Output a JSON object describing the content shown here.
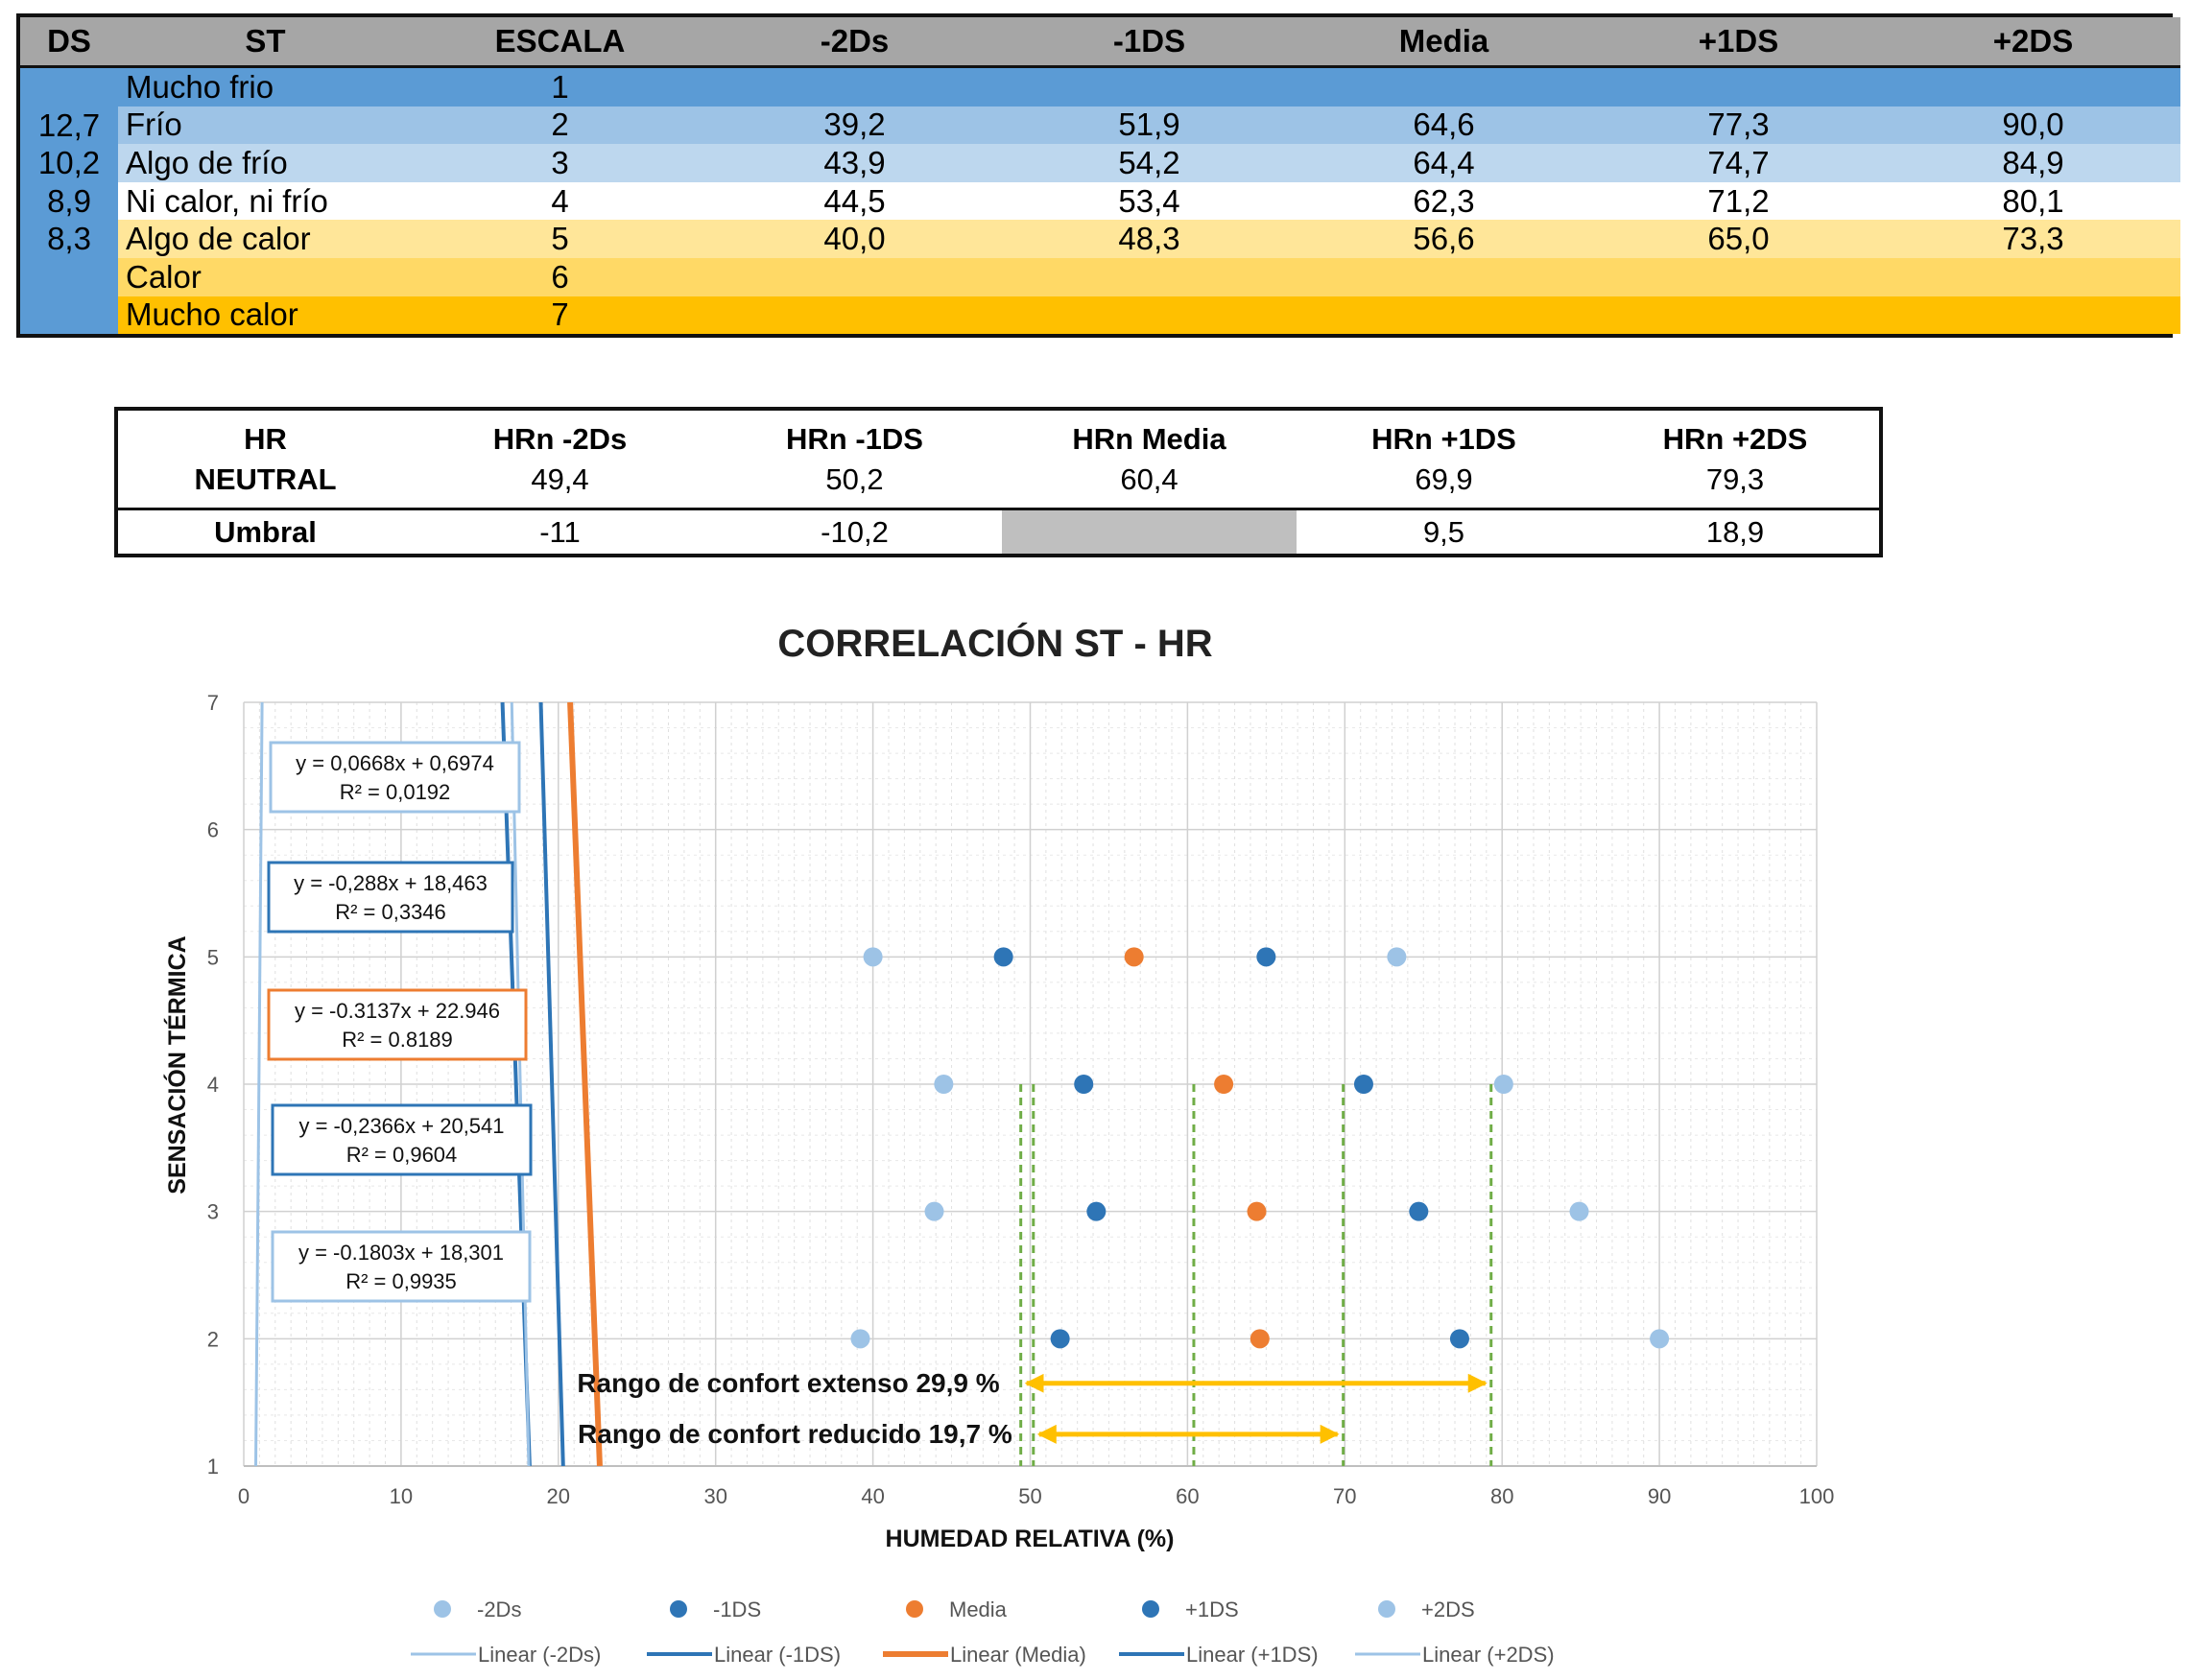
{
  "top_table": {
    "headers": [
      "DS",
      "ST",
      "ESCALA",
      "-2Ds",
      "-1DS",
      "Media",
      "+1DS",
      "+2DS"
    ],
    "ds_values": [
      "12,7",
      "10,2",
      "8,9",
      "8,3"
    ],
    "rows": [
      {
        "st": "Mucho frio",
        "escala": "1",
        "m2": "",
        "m1": "",
        "media": "",
        "p1": "",
        "p2": "",
        "color": "#5b9bd5"
      },
      {
        "st": "Frío",
        "escala": "2",
        "m2": "39,2",
        "m1": "51,9",
        "media": "64,6",
        "p1": "77,3",
        "p2": "90,0",
        "color": "#9dc3e6"
      },
      {
        "st": "Algo de frío",
        "escala": "3",
        "m2": "43,9",
        "m1": "54,2",
        "media": "64,4",
        "p1": "74,7",
        "p2": "84,9",
        "color": "#bdd7ee"
      },
      {
        "st": "Ni calor, ni frío",
        "escala": "4",
        "m2": "44,5",
        "m1": "53,4",
        "media": "62,3",
        "p1": "71,2",
        "p2": "80,1",
        "color": "#ffffff"
      },
      {
        "st": "Algo de calor",
        "escala": "5",
        "m2": "40,0",
        "m1": "48,3",
        "media": "56,6",
        "p1": "65,0",
        "p2": "73,3",
        "color": "#ffe699"
      },
      {
        "st": "Calor",
        "escala": "6",
        "m2": "",
        "m1": "",
        "media": "",
        "p1": "",
        "p2": "",
        "color": "#ffd966"
      },
      {
        "st": "Mucho calor",
        "escala": "7",
        "m2": "",
        "m1": "",
        "media": "",
        "p1": "",
        "p2": "",
        "color": "#ffc000"
      }
    ]
  },
  "neutral_table": {
    "label_line1": "HR",
    "label_line2": "NEUTRAL",
    "headers": [
      "HRn -2Ds",
      "HRn -1DS",
      "HRn Media",
      "HRn +1DS",
      "HRn +2DS"
    ],
    "values": [
      "49,4",
      "50,2",
      "60,4",
      "69,9",
      "79,3"
    ],
    "umbral_label": "Umbral",
    "umbral": [
      "-11",
      "-10,2",
      "",
      "9,5",
      "18,9"
    ]
  },
  "chart_data": {
    "type": "scatter",
    "title": "CORRELACIÓN ST - HR",
    "xlabel": "HUMEDAD RELATIVA (%)",
    "ylabel": "SENSACIÓN TÉRMICA",
    "xlim": [
      0,
      100
    ],
    "ylim": [
      1,
      7
    ],
    "xticks": [
      0,
      10,
      20,
      30,
      40,
      50,
      60,
      70,
      80,
      90,
      100
    ],
    "yticks": [
      1,
      2,
      3,
      4,
      5,
      6,
      7
    ],
    "grid": true,
    "legend_position": "bottom",
    "series": [
      {
        "name": "-2Ds",
        "color": "#9dc3e6",
        "points": [
          [
            39.2,
            2
          ],
          [
            43.9,
            3
          ],
          [
            44.5,
            4
          ],
          [
            40.0,
            5
          ]
        ],
        "trend_label": "Linear (-2Ds)",
        "slope": 0.0668,
        "intercept": 0.6974
      },
      {
        "name": "-1DS",
        "color": "#2e75b6",
        "points": [
          [
            51.9,
            2
          ],
          [
            54.2,
            3
          ],
          [
            53.4,
            4
          ],
          [
            48.3,
            5
          ]
        ],
        "trend_label": "Linear (-1DS)",
        "slope": -0.288,
        "intercept": 18.463
      },
      {
        "name": "Media",
        "color": "#ed7d31",
        "points": [
          [
            64.6,
            2
          ],
          [
            64.4,
            3
          ],
          [
            62.3,
            4
          ],
          [
            56.6,
            5
          ]
        ],
        "trend_label": "Linear (Media)",
        "slope": -0.3137,
        "intercept": 22.946
      },
      {
        "name": "+1DS",
        "color": "#2e75b6",
        "points": [
          [
            77.3,
            2
          ],
          [
            74.7,
            3
          ],
          [
            71.2,
            4
          ],
          [
            65.0,
            5
          ]
        ],
        "trend_label": "Linear (+1DS)",
        "slope": -0.2366,
        "intercept": 20.541
      },
      {
        "name": "+2DS",
        "color": "#9dc3e6",
        "points": [
          [
            90.0,
            2
          ],
          [
            84.9,
            3
          ],
          [
            80.1,
            4
          ],
          [
            73.3,
            5
          ]
        ],
        "trend_label": "Linear (+2DS)",
        "slope": -0.1803,
        "intercept": 18.301
      }
    ],
    "equation_boxes": [
      {
        "line1": "y = 0,0668x + 0,6974",
        "line2": "R² = 0,0192",
        "color": "#9dc3e6"
      },
      {
        "line1": "y = -0,288x + 18,463",
        "line2": "R² = 0,3346",
        "color": "#2e75b6"
      },
      {
        "line1": "y = -0.3137x + 22.946",
        "line2": "R² = 0.8189",
        "color": "#ed7d31"
      },
      {
        "line1": "y = -0,2366x + 20,541",
        "line2": "R² = 0,9604",
        "color": "#2e75b6"
      },
      {
        "line1": "y = -0.1803x + 18,301",
        "line2": "R² = 0,9935",
        "color": "#9dc3e6"
      }
    ],
    "dashed_lines_x": [
      49.4,
      50.2,
      60.4,
      69.9,
      79.3
    ],
    "comfort_ranges": [
      {
        "label": "Rango de confort extenso 29,9 %",
        "from": 49.4,
        "to": 79.3,
        "y": 1.65
      },
      {
        "label": "Rango de confort reducido 19,7 %",
        "from": 50.2,
        "to": 69.9,
        "y": 1.25
      }
    ]
  }
}
